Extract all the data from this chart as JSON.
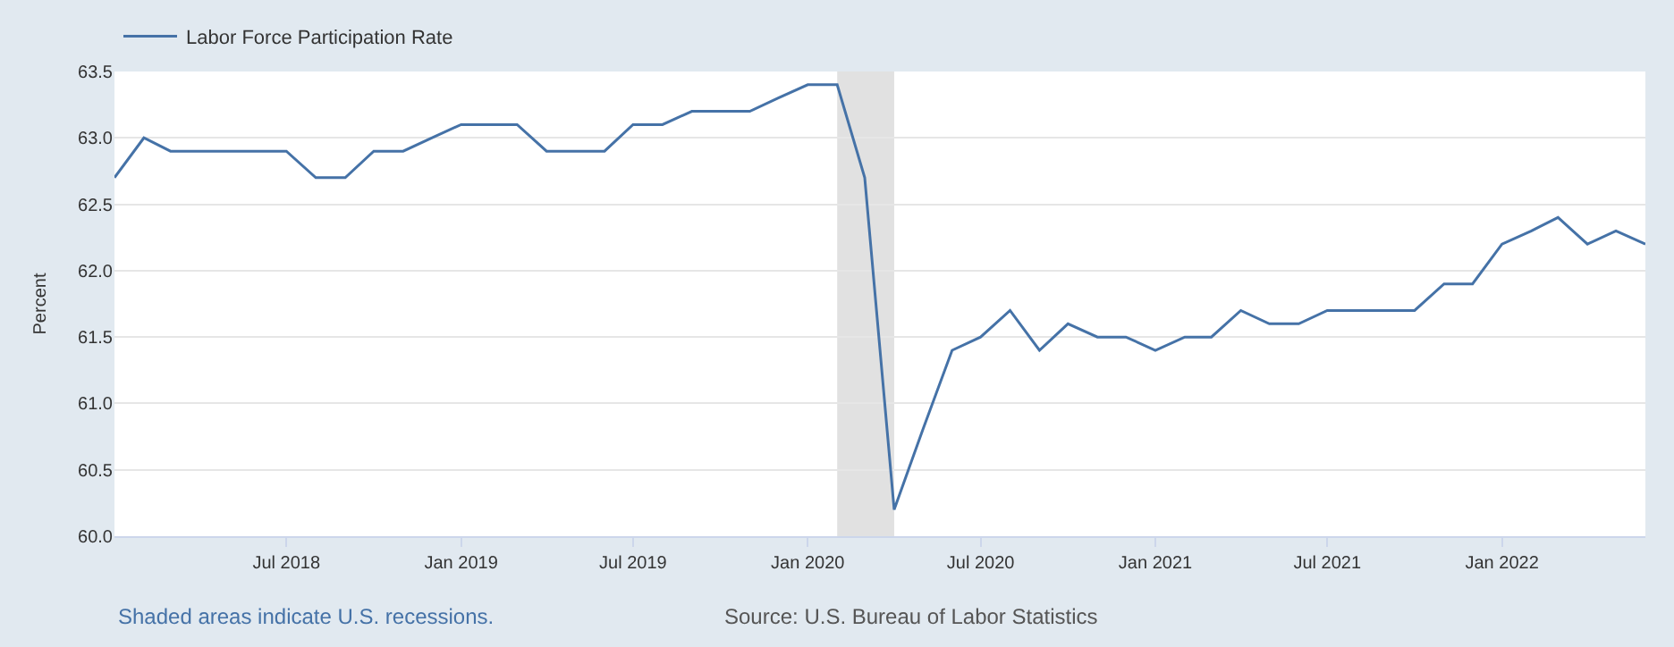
{
  "chart_data": {
    "type": "line",
    "ylabel": "Percent",
    "x": [
      "2018-01",
      "2018-02",
      "2018-03",
      "2018-04",
      "2018-05",
      "2018-06",
      "2018-07",
      "2018-08",
      "2018-09",
      "2018-10",
      "2018-11",
      "2018-12",
      "2019-01",
      "2019-02",
      "2019-03",
      "2019-04",
      "2019-05",
      "2019-06",
      "2019-07",
      "2019-08",
      "2019-09",
      "2019-10",
      "2019-11",
      "2019-12",
      "2020-01",
      "2020-02",
      "2020-03",
      "2020-04",
      "2020-05",
      "2020-06",
      "2020-07",
      "2020-08",
      "2020-09",
      "2020-10",
      "2020-11",
      "2020-12",
      "2021-01",
      "2021-02",
      "2021-03",
      "2021-04",
      "2021-05",
      "2021-06",
      "2021-07",
      "2021-08",
      "2021-09",
      "2021-10",
      "2021-11",
      "2021-12",
      "2022-01",
      "2022-02",
      "2022-03",
      "2022-04",
      "2022-05",
      "2022-06"
    ],
    "series": [
      {
        "name": "Labor Force Participation Rate",
        "color": "#4572a7",
        "values": [
          62.7,
          63.0,
          62.9,
          62.9,
          62.9,
          62.9,
          62.9,
          62.7,
          62.7,
          62.9,
          62.9,
          63.0,
          63.1,
          63.1,
          63.1,
          62.9,
          62.9,
          62.9,
          63.1,
          63.1,
          63.2,
          63.2,
          63.2,
          63.3,
          63.4,
          63.4,
          62.7,
          60.2,
          60.8,
          61.4,
          61.5,
          61.7,
          61.4,
          61.6,
          61.5,
          61.5,
          61.4,
          61.5,
          61.5,
          61.7,
          61.6,
          61.6,
          61.7,
          61.7,
          61.7,
          61.7,
          61.9,
          61.9,
          62.2,
          62.3,
          62.4,
          62.2,
          62.3,
          62.2
        ]
      }
    ],
    "xlim": [
      "2018-01",
      "2022-06"
    ],
    "xticks": [
      {
        "value": "2018-07",
        "label": "Jul 2018"
      },
      {
        "value": "2019-01",
        "label": "Jan 2019"
      },
      {
        "value": "2019-07",
        "label": "Jul 2019"
      },
      {
        "value": "2020-01",
        "label": "Jan 2020"
      },
      {
        "value": "2020-07",
        "label": "Jul 2020"
      },
      {
        "value": "2021-01",
        "label": "Jan 2021"
      },
      {
        "value": "2021-07",
        "label": "Jul 2021"
      },
      {
        "value": "2022-01",
        "label": "Jan 2022"
      }
    ],
    "ylim": [
      60.0,
      63.5
    ],
    "yticks": [
      {
        "value": 60.0,
        "label": "60.0"
      },
      {
        "value": 60.5,
        "label": "60.5"
      },
      {
        "value": 61.0,
        "label": "61.0"
      },
      {
        "value": 61.5,
        "label": "61.5"
      },
      {
        "value": 62.0,
        "label": "62.0"
      },
      {
        "value": 62.5,
        "label": "62.5"
      },
      {
        "value": 63.0,
        "label": "63.0"
      },
      {
        "value": 63.5,
        "label": "63.5"
      }
    ],
    "bands": [
      {
        "axis": "x",
        "from": "2020-02",
        "to": "2020-04",
        "color": "#e1e1e1"
      }
    ],
    "grid": "y",
    "legend": "top left",
    "marker": "none",
    "line_style": "solid",
    "annotations": [
      "Shaded areas indicate U.S. recessions.",
      "Source: U.S. Bureau of Labor Statistics"
    ]
  }
}
